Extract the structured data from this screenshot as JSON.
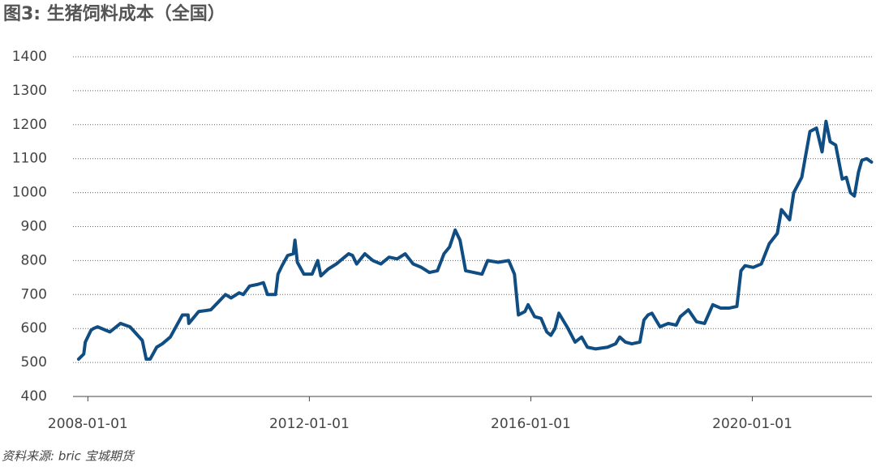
{
  "chart_data": {
    "type": "line",
    "title": "图3: 生猪饲料成本（全国）",
    "source": "资料来源: bric 宝城期货",
    "color": "#0f4d82",
    "grid": true,
    "xlim": [
      "2007-09-25",
      "2022-02-28"
    ],
    "xticks": [
      "2008-01-01",
      "2012-01-01",
      "2016-01-01",
      "2020-01-01"
    ],
    "ylim": [
      400,
      1400
    ],
    "yticks": [
      400,
      500,
      600,
      700,
      800,
      900,
      1000,
      1100,
      1200,
      1300,
      1400
    ],
    "x": [
      "2007-11-01",
      "2007-12-05",
      "2007-12-15",
      "2008-01-22",
      "2008-02-07",
      "2008-03-05",
      "2008-05-25",
      "2008-08-03",
      "2008-10-05",
      "2008-12-25",
      "2009-01-20",
      "2009-02-15",
      "2009-03-30",
      "2009-05-06",
      "2009-06-28",
      "2009-09-16",
      "2009-10-23",
      "2009-10-28",
      "2010-01-01",
      "2010-03-22",
      "2010-05-15",
      "2010-06-27",
      "2010-08-03",
      "2010-09-25",
      "2010-10-22",
      "2010-12-03",
      "2011-01-26",
      "2011-03-04",
      "2011-03-31",
      "2011-05-23",
      "2011-06-08",
      "2011-07-05",
      "2011-08-11",
      "2011-09-17",
      "2011-09-28",
      "2011-10-14",
      "2011-11-26",
      "2012-01-19",
      "2012-02-25",
      "2012-03-17",
      "2012-05-04",
      "2012-06-27",
      "2012-08-20",
      "2012-09-16",
      "2012-10-12",
      "2012-11-08",
      "2013-01-01",
      "2013-02-23",
      "2013-04-17",
      "2013-06-10",
      "2013-08-02",
      "2013-09-24",
      "2013-11-16",
      "2014-01-09",
      "2014-03-03",
      "2014-04-25",
      "2014-06-07",
      "2014-07-14",
      "2014-08-20",
      "2014-09-21",
      "2014-10-28",
      "2014-12-21",
      "2015-02-13",
      "2015-03-22",
      "2015-05-31",
      "2015-08-08",
      "2015-09-15",
      "2015-10-11",
      "2015-11-23",
      "2015-12-14",
      "2016-01-26",
      "2016-03-08",
      "2016-04-15",
      "2016-05-12",
      "2016-06-08",
      "2016-07-04",
      "2016-08-27",
      "2016-10-19",
      "2016-12-01",
      "2017-01-08",
      "2017-03-02",
      "2017-05-21",
      "2017-07-13",
      "2017-08-09",
      "2017-09-16",
      "2017-10-28",
      "2017-12-20",
      "2018-01-16",
      "2018-02-12",
      "2018-03-10",
      "2018-05-02",
      "2018-06-25",
      "2018-08-17",
      "2018-09-13",
      "2018-11-05",
      "2018-12-29",
      "2019-02-20",
      "2019-04-15",
      "2019-06-07",
      "2019-07-30",
      "2019-09-21",
      "2019-10-18",
      "2019-11-14",
      "2020-01-07",
      "2020-02-29",
      "2020-04-22",
      "2020-06-14",
      "2020-07-11",
      "2020-09-03",
      "2020-09-30",
      "2020-11-22",
      "2021-01-15",
      "2021-02-27",
      "2021-04-05",
      "2021-05-01",
      "2021-05-28",
      "2021-07-04",
      "2021-08-16",
      "2021-09-12",
      "2021-10-09",
      "2021-11-04",
      "2021-12-01",
      "2021-12-23",
      "2022-01-24",
      "2022-02-25"
    ],
    "values": [
      510,
      525,
      560,
      595,
      600,
      605,
      590,
      615,
      605,
      565,
      510,
      510,
      545,
      555,
      575,
      640,
      640,
      615,
      650,
      655,
      680,
      700,
      690,
      705,
      700,
      725,
      730,
      735,
      700,
      700,
      760,
      785,
      815,
      820,
      860,
      795,
      760,
      760,
      800,
      755,
      775,
      790,
      810,
      820,
      815,
      790,
      820,
      800,
      790,
      810,
      805,
      820,
      790,
      780,
      765,
      770,
      820,
      840,
      890,
      860,
      770,
      765,
      760,
      800,
      795,
      800,
      760,
      640,
      650,
      670,
      635,
      630,
      590,
      580,
      600,
      645,
      605,
      560,
      575,
      545,
      540,
      545,
      555,
      575,
      560,
      555,
      560,
      625,
      640,
      645,
      605,
      615,
      610,
      635,
      655,
      620,
      615,
      670,
      660,
      660,
      665,
      770,
      785,
      780,
      790,
      850,
      880,
      950,
      920,
      1000,
      1045,
      1180,
      1190,
      1120,
      1210,
      1150,
      1140,
      1040,
      1045,
      1000,
      990,
      1060,
      1095,
      1100,
      1090
    ]
  }
}
